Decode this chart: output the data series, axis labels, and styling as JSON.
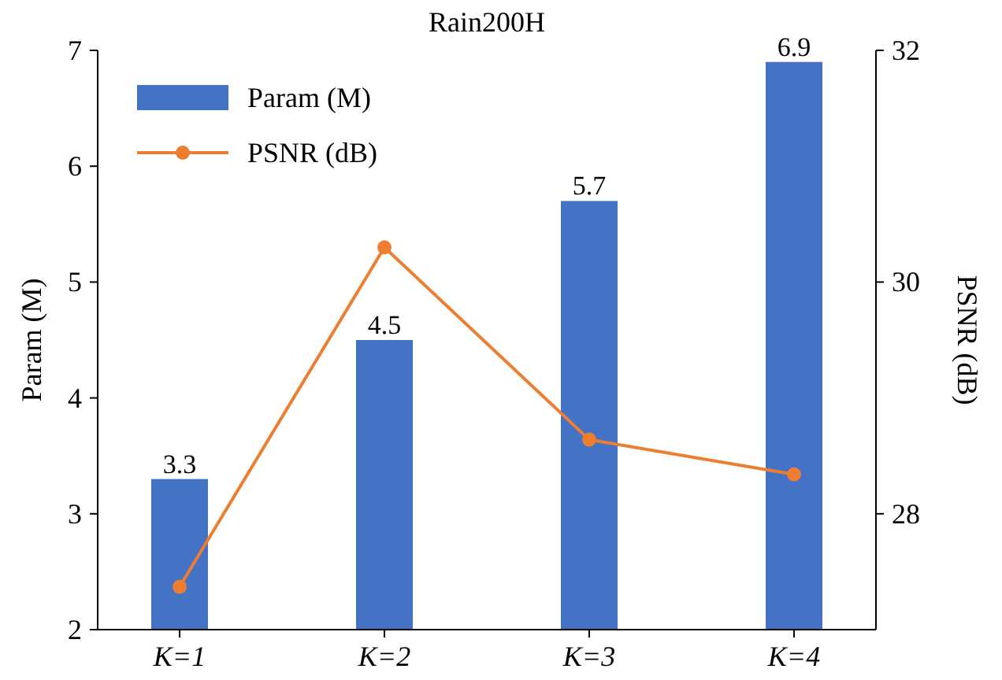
{
  "chart_data": {
    "type": "bar",
    "title": "Rain200H",
    "categories": [
      "K=1",
      "K=2",
      "K=3",
      "K=4"
    ],
    "ylabel": "Param (M)",
    "y2label": "PSNR (dB)",
    "ylim": [
      2,
      7
    ],
    "yticks": [
      2,
      3,
      4,
      5,
      6,
      7
    ],
    "y2lim": [
      27,
      32
    ],
    "y2ticks": [
      28,
      30,
      32
    ],
    "legend": "top left",
    "grid": false,
    "series": [
      {
        "name": "Param (M)",
        "color": "#4472c4",
        "values": [
          3.3,
          4.5,
          5.7,
          6.9
        ],
        "value_labels": [
          "3.3",
          "4.5",
          "5.7",
          "6.9"
        ]
      },
      {
        "name": "PSNR (dB)",
        "type": "line",
        "axis": "y2",
        "color": "#ed7d31",
        "marker": "circle",
        "values": [
          27.37,
          30.3,
          28.64,
          28.34
        ]
      }
    ]
  }
}
